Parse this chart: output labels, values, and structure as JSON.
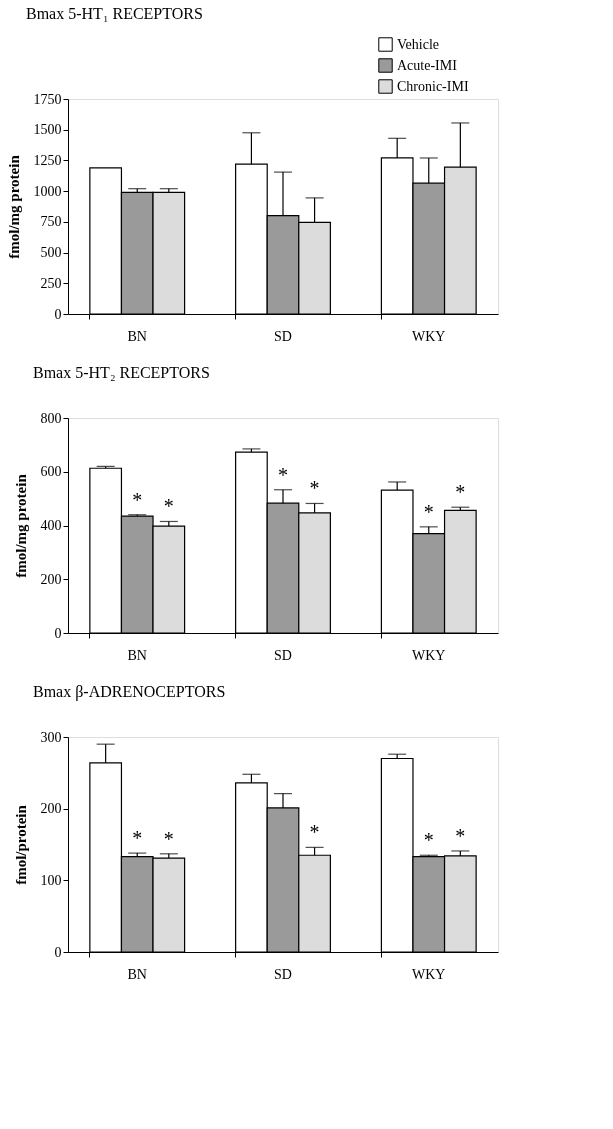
{
  "chart_data": [
    {
      "type": "bar",
      "title": "Bmax 5-HT₁ RECEPTORS",
      "ylabel": "fmol/mg protein",
      "categories": [
        "BN",
        "SD",
        "WKY"
      ],
      "series": [
        {
          "name": "Vehicle",
          "color": "#ffffff",
          "values": [
            1190,
            1220,
            1270
          ],
          "errors": [
            null,
            [
              1220,
              1475
            ],
            [
              1270,
              1430
            ]
          ]
        },
        {
          "name": "Acute-IMI",
          "color": "#9a9a9a",
          "values": [
            990,
            800,
            1065
          ],
          "errors": [
            [
              990,
              1020
            ],
            [
              800,
              1155
            ],
            [
              1065,
              1270
            ]
          ]
        },
        {
          "name": "Chronic-IMI",
          "color": "#dcdcdc",
          "values": [
            990,
            745,
            1195
          ],
          "errors": [
            [
              990,
              1020
            ],
            [
              745,
              945
            ],
            [
              1195,
              1555
            ]
          ]
        }
      ],
      "ylim": [
        0,
        1750
      ],
      "yticks": [
        0,
        250,
        500,
        750,
        1000,
        1250,
        1500,
        1750
      ],
      "legend": "top right",
      "grid": false
    },
    {
      "type": "bar",
      "title": "Bmax 5-HT₂ RECEPTORS",
      "ylabel": "fmol/mg protein",
      "categories": [
        "BN",
        "SD",
        "WKY"
      ],
      "series": [
        {
          "color": "#ffffff",
          "values": [
            613,
            673,
            532
          ],
          "errors": [
            [
              613,
              620
            ],
            [
              673,
              685
            ],
            [
              532,
              562
            ]
          ]
        },
        {
          "color": "#9a9a9a",
          "values": [
            435,
            483,
            370
          ],
          "errors": [
            [
              435,
              440
            ],
            [
              483,
              533
            ],
            [
              370,
              395
            ]
          ],
          "value_labels": [
            "*",
            "*",
            "*"
          ]
        },
        {
          "color": "#dcdcdc",
          "values": [
            398,
            447,
            456
          ],
          "errors": [
            [
              398,
              415
            ],
            [
              447,
              482
            ],
            [
              456,
              468
            ]
          ],
          "value_labels": [
            "*",
            "*",
            "*"
          ]
        }
      ],
      "ylim": [
        0,
        800
      ],
      "yticks": [
        0,
        200,
        400,
        600,
        800
      ],
      "grid": false
    },
    {
      "type": "bar",
      "title": "Bmax β-ADRENOCEPTORS",
      "ylabel": "fmol/protein",
      "categories": [
        "BN",
        "SD",
        "WKY"
      ],
      "series": [
        {
          "color": "#ffffff",
          "values": [
            264,
            236,
            270
          ],
          "errors": [
            [
              264,
              290
            ],
            [
              236,
              248
            ],
            [
              270,
              276
            ]
          ]
        },
        {
          "color": "#9a9a9a",
          "values": [
            133,
            201,
            133
          ],
          "errors": [
            [
              133,
              138
            ],
            [
              201,
              221
            ],
            [
              133,
              135
            ]
          ],
          "value_labels": [
            "*",
            null,
            "*"
          ]
        },
        {
          "color": "#dcdcdc",
          "values": [
            131,
            135,
            134
          ],
          "errors": [
            [
              131,
              137
            ],
            [
              135,
              146
            ],
            [
              134,
              141
            ]
          ],
          "value_labels": [
            "*",
            "*",
            "*"
          ]
        }
      ],
      "ylim": [
        0,
        300
      ],
      "yticks": [
        0,
        100,
        200,
        300
      ],
      "grid": false
    }
  ]
}
